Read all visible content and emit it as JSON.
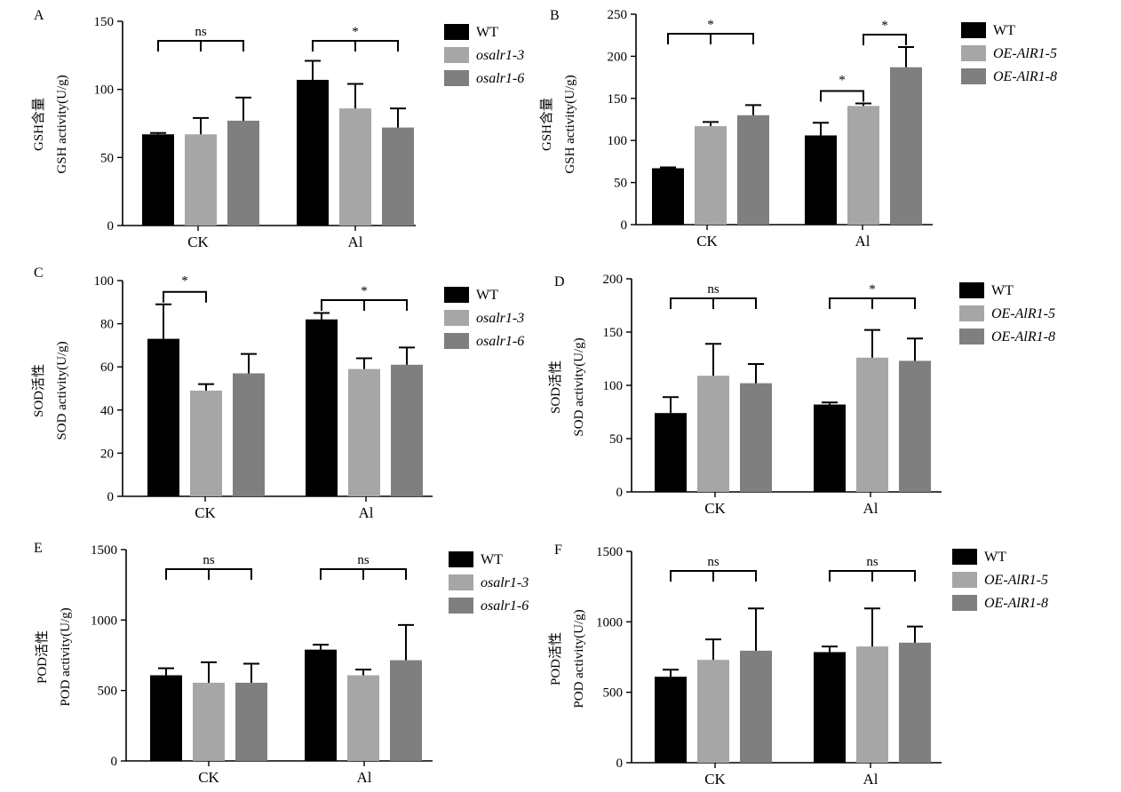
{
  "colors": {
    "wt": "#000000",
    "line3": "#a6a6a6",
    "line6": "#7f7f7f"
  },
  "chart_data": [
    {
      "panel": "A",
      "type": "bar",
      "ylabel_cn": "GSH含量",
      "ylabel": "GSH activity(U/g)",
      "ylim": [
        0,
        150
      ],
      "yticks": [
        0,
        50,
        100,
        150
      ],
      "categories": [
        "CK",
        "Al"
      ],
      "series": [
        {
          "name": "WT",
          "values": [
            67,
            107
          ],
          "errors": [
            1,
            14
          ]
        },
        {
          "name": "osalr1-3",
          "values": [
            67,
            86
          ],
          "errors": [
            12,
            18
          ]
        },
        {
          "name": "osalr1-6",
          "values": [
            77,
            72
          ],
          "errors": [
            17,
            14
          ]
        }
      ],
      "annotations": [
        {
          "category": "CK",
          "label": "ns",
          "type": "bracket"
        },
        {
          "category": "Al",
          "label": "*",
          "type": "bracket"
        }
      ]
    },
    {
      "panel": "B",
      "type": "bar",
      "ylabel_cn": "GSH含量",
      "ylabel": "GSH activity(U/g)",
      "ylim": [
        0,
        250
      ],
      "yticks": [
        0,
        50,
        100,
        150,
        200,
        250
      ],
      "categories": [
        "CK",
        "Al"
      ],
      "series": [
        {
          "name": "OE-AlR1-5",
          "values": [
            117,
            141
          ],
          "errors": [
            5,
            3
          ]
        },
        {
          "name": "OE-AlR1-8",
          "values": [
            130,
            187
          ],
          "errors": [
            12,
            24
          ]
        },
        {
          "name": "WT",
          "values": [
            67,
            106
          ],
          "errors": [
            1,
            15
          ]
        }
      ],
      "series_order": [
        "WT",
        "OE-AlR1-5",
        "OE-AlR1-8"
      ],
      "annotations": [
        {
          "category": "CK",
          "label": "*",
          "type": "bracket"
        },
        {
          "category": "Al",
          "label": "*",
          "type": "pair-1-2"
        },
        {
          "category": "Al",
          "label": "*",
          "type": "pair-2-3"
        }
      ]
    },
    {
      "panel": "C",
      "type": "bar",
      "ylabel_cn": "SOD活性",
      "ylabel": "SOD activity(U/g)",
      "ylim": [
        0,
        100
      ],
      "yticks": [
        0,
        20,
        40,
        60,
        80,
        100
      ],
      "categories": [
        "CK",
        "Al"
      ],
      "series": [
        {
          "name": "WT",
          "values": [
            73,
            82
          ],
          "errors": [
            16,
            3
          ]
        },
        {
          "name": "osalr1-3",
          "values": [
            49,
            59
          ],
          "errors": [
            3,
            5
          ]
        },
        {
          "name": "osalr1-6",
          "values": [
            57,
            61
          ],
          "errors": [
            9,
            8
          ]
        }
      ],
      "annotations": [
        {
          "category": "CK",
          "label": "*",
          "type": "pair-1-2"
        },
        {
          "category": "Al",
          "label": "*",
          "type": "bracket"
        }
      ]
    },
    {
      "panel": "D",
      "type": "bar",
      "ylabel_cn": "SOD活性",
      "ylabel": "SOD activity(U/g)",
      "ylim": [
        0,
        200
      ],
      "yticks": [
        0,
        50,
        100,
        150,
        200
      ],
      "categories": [
        "CK",
        "Al"
      ],
      "series": [
        {
          "name": "WT",
          "values": [
            74,
            82
          ],
          "errors": [
            15,
            2
          ]
        },
        {
          "name": "OE-AlR1-5",
          "values": [
            109,
            126
          ],
          "errors": [
            30,
            26
          ]
        },
        {
          "name": "OE-AlR1-8",
          "values": [
            102,
            123
          ],
          "errors": [
            18,
            21
          ]
        }
      ],
      "annotations": [
        {
          "category": "CK",
          "label": "ns",
          "type": "bracket"
        },
        {
          "category": "Al",
          "label": "*",
          "type": "bracket"
        }
      ]
    },
    {
      "panel": "E",
      "type": "bar",
      "ylabel_cn": "POD活性",
      "ylabel": "POD activity(U/g)",
      "ylim": [
        0,
        1500
      ],
      "yticks": [
        0,
        500,
        1000,
        1500
      ],
      "categories": [
        "CK",
        "Al"
      ],
      "series": [
        {
          "name": "WT",
          "values": [
            608,
            790
          ],
          "errors": [
            50,
            35
          ]
        },
        {
          "name": "osalr1-3",
          "values": [
            555,
            608
          ],
          "errors": [
            145,
            40
          ]
        },
        {
          "name": "osalr1-6",
          "values": [
            555,
            715
          ],
          "errors": [
            135,
            250
          ]
        }
      ],
      "annotations": [
        {
          "category": "CK",
          "label": "ns",
          "type": "bracket"
        },
        {
          "category": "Al",
          "label": "ns",
          "type": "bracket"
        }
      ]
    },
    {
      "panel": "F",
      "type": "bar",
      "ylabel_cn": "POD活性",
      "ylabel": "POD activity(U/g)",
      "ylim": [
        0,
        1500
      ],
      "yticks": [
        0,
        500,
        1000,
        1500
      ],
      "categories": [
        "CK",
        "Al"
      ],
      "series": [
        {
          "name": "WT",
          "values": [
            610,
            785
          ],
          "errors": [
            50,
            40
          ]
        },
        {
          "name": "OE-AlR1-5",
          "values": [
            730,
            825
          ],
          "errors": [
            145,
            270
          ]
        },
        {
          "name": "OE-AlR1-8",
          "values": [
            795,
            852
          ],
          "errors": [
            300,
            115
          ]
        }
      ],
      "annotations": [
        {
          "category": "CK",
          "label": "ns",
          "type": "bracket"
        },
        {
          "category": "Al",
          "label": "ns",
          "type": "bracket"
        }
      ]
    }
  ]
}
